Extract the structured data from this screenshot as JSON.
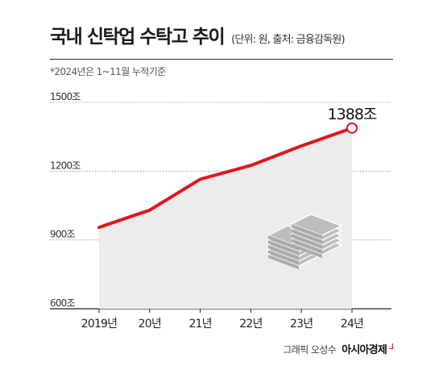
{
  "header": {
    "title": "국내 신탁업 수탁고 추이",
    "unit_note": "(단위: 원, 출처: 금융감독원)",
    "footnote": "*2024년은 1~11월 누적기준"
  },
  "footer": {
    "credit": "그래픽 오성수",
    "brand": "아시아경제"
  },
  "chart_data": {
    "type": "area",
    "categories": [
      "2019년",
      "20년",
      "21년",
      "22년",
      "23년",
      "24년"
    ],
    "values": [
      955,
      1030,
      1165,
      1225,
      1310,
      1388
    ],
    "ylim": [
      600,
      1500
    ],
    "yticks": [
      600,
      900,
      1200,
      1500
    ],
    "ytick_labels": [
      "600조",
      "900조",
      "1200조",
      "1500조"
    ],
    "grid": true,
    "annotation": {
      "category": "24년",
      "label": "1388조"
    },
    "colors": {
      "line": "#e0161e",
      "area": "#ececec",
      "grid": "#888888",
      "icon": "#bdbdbd"
    }
  }
}
